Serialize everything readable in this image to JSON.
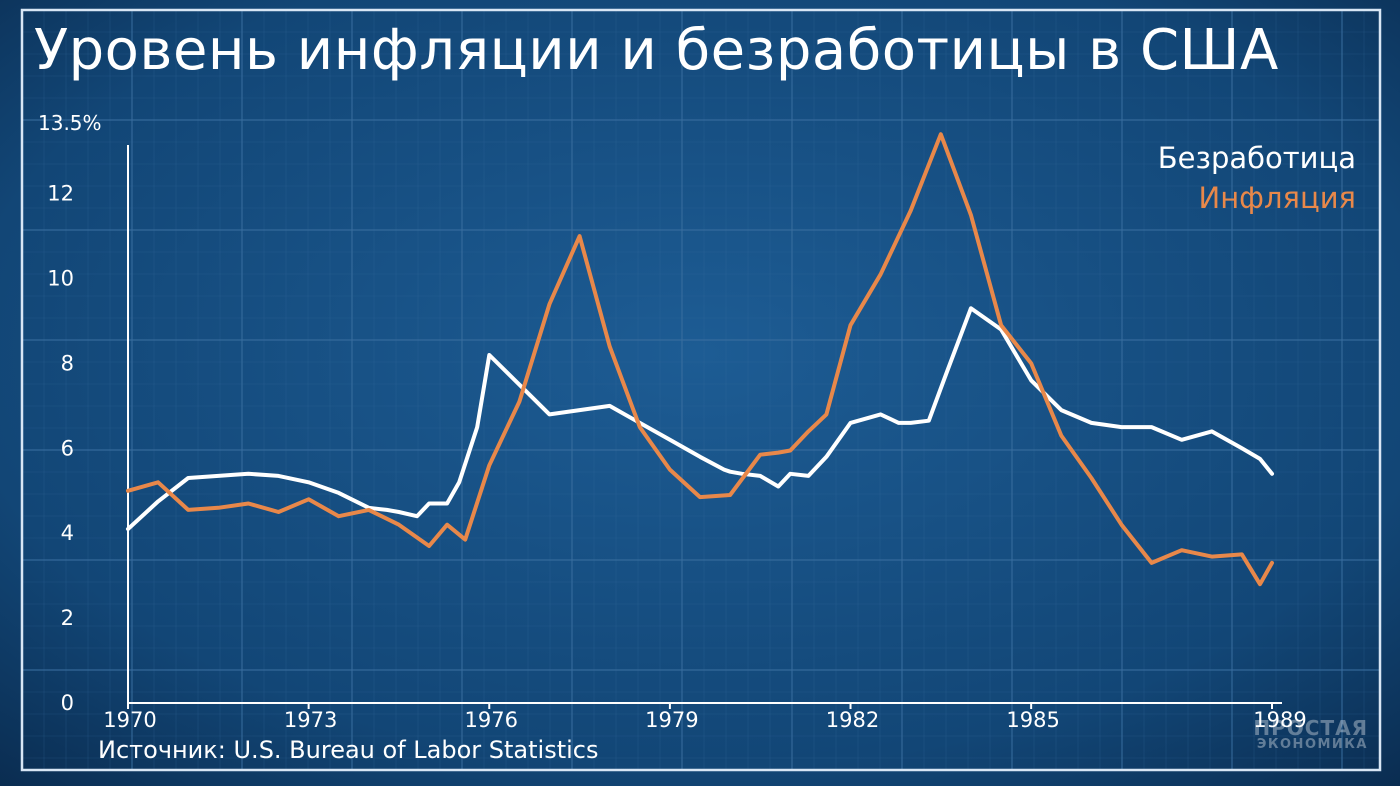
{
  "title": "Уровень инфляции и безработицы в США",
  "source": "Источник: U.S. Bureau of Labor Statistics",
  "logo": {
    "line1": "ПРОСТАЯ",
    "line2": "ЭКОНОМИКА"
  },
  "colors": {
    "background": "#0f3a66",
    "grid": "#3a6fa0",
    "unemployment": "#ffffff",
    "inflation": "#e8884a",
    "axis": "#ffffff"
  },
  "chart_data": {
    "type": "line",
    "xlabel": "",
    "ylabel": "",
    "xlim": [
      1970,
      1989
    ],
    "ylim": [
      0,
      13.5
    ],
    "x_ticks": [
      1970,
      1973,
      1976,
      1979,
      1982,
      1985,
      1989
    ],
    "y_ticks": [
      {
        "value": 0,
        "label": "0"
      },
      {
        "value": 2,
        "label": "2"
      },
      {
        "value": 4,
        "label": "4"
      },
      {
        "value": 6,
        "label": "6"
      },
      {
        "value": 8,
        "label": "8"
      },
      {
        "value": 10,
        "label": "10"
      },
      {
        "value": 12,
        "label": "12"
      },
      {
        "value": 13.5,
        "label": "13.5%"
      }
    ],
    "grid": true,
    "legend_position": "top-right",
    "series": [
      {
        "name": "Безработица",
        "color": "#ffffff",
        "x": [
          1970.0,
          1970.5,
          1971.0,
          1971.5,
          1972.0,
          1972.5,
          1973.0,
          1973.5,
          1974.0,
          1974.3,
          1974.5,
          1974.8,
          1975.0,
          1975.3,
          1975.5,
          1975.8,
          1976.0,
          1976.5,
          1977.0,
          1977.5,
          1978.0,
          1978.5,
          1979.0,
          1979.5,
          1979.9,
          1980.0,
          1980.2,
          1980.5,
          1980.8,
          1981.0,
          1981.3,
          1981.6,
          1982.0,
          1982.5,
          1982.8,
          1983.0,
          1983.3,
          1983.6,
          1984.0,
          1984.5,
          1985.0,
          1985.5,
          1986.0,
          1986.5,
          1987.0,
          1987.5,
          1988.0,
          1988.5,
          1988.8,
          1989.0
        ],
        "y": [
          4.1,
          4.75,
          5.3,
          5.35,
          5.4,
          5.35,
          5.2,
          4.95,
          4.6,
          4.55,
          4.5,
          4.4,
          4.7,
          4.7,
          5.2,
          6.5,
          8.2,
          7.5,
          6.8,
          6.9,
          7.0,
          6.6,
          6.2,
          5.8,
          5.5,
          5.45,
          5.4,
          5.35,
          5.1,
          5.4,
          5.35,
          5.8,
          6.6,
          6.8,
          6.6,
          6.6,
          6.65,
          7.8,
          9.3,
          8.8,
          7.6,
          6.9,
          6.6,
          6.5,
          6.5,
          6.2,
          6.4,
          6.0,
          5.75,
          5.4
        ],
        "values": [
          4.1,
          4.75,
          5.3,
          5.35,
          5.4,
          5.35,
          5.2,
          4.95,
          4.6,
          4.55,
          4.5,
          4.4,
          4.7,
          4.7,
          5.2,
          6.5,
          8.2,
          7.5,
          6.8,
          6.9,
          7.0,
          6.6,
          6.2,
          5.8,
          5.5,
          5.45,
          5.4,
          5.35,
          5.1,
          5.4,
          5.35,
          5.8,
          6.6,
          6.8,
          6.6,
          6.6,
          6.65,
          7.8,
          9.3,
          8.8,
          7.6,
          6.9,
          6.6,
          6.5,
          6.5,
          6.2,
          6.4,
          6.0,
          5.75,
          5.4
        ]
      },
      {
        "name": "Инфляция",
        "color": "#e8884a",
        "x": [
          1970.0,
          1970.5,
          1971.0,
          1971.5,
          1972.0,
          1972.5,
          1973.0,
          1973.5,
          1974.0,
          1974.5,
          1975.0,
          1975.3,
          1975.6,
          1976.0,
          1976.5,
          1977.0,
          1977.5,
          1978.0,
          1978.5,
          1979.0,
          1979.5,
          1980.0,
          1980.5,
          1980.8,
          1981.0,
          1981.3,
          1981.6,
          1982.0,
          1982.5,
          1983.0,
          1983.5,
          1984.0,
          1984.5,
          1985.0,
          1985.5,
          1986.0,
          1986.5,
          1987.0,
          1987.5,
          1988.0,
          1988.5,
          1988.8,
          1989.0
        ],
        "y": [
          5.0,
          5.2,
          4.55,
          4.6,
          4.7,
          4.5,
          4.8,
          4.4,
          4.55,
          4.2,
          3.7,
          4.2,
          3.85,
          5.6,
          7.1,
          9.4,
          11.0,
          8.4,
          6.5,
          5.5,
          4.85,
          4.9,
          5.85,
          5.9,
          5.95,
          6.4,
          6.8,
          8.9,
          10.1,
          11.6,
          13.4,
          11.5,
          8.9,
          8.0,
          6.3,
          5.3,
          4.2,
          3.3,
          3.6,
          3.45,
          3.5,
          2.8,
          3.3
        ],
        "values": [
          5.0,
          5.2,
          4.55,
          4.6,
          4.7,
          4.5,
          4.8,
          4.4,
          4.55,
          4.2,
          3.7,
          4.2,
          3.85,
          5.6,
          7.1,
          9.4,
          11.0,
          8.4,
          6.5,
          5.5,
          4.85,
          4.9,
          5.85,
          5.9,
          5.95,
          6.4,
          6.8,
          8.9,
          10.1,
          11.6,
          13.4,
          11.5,
          8.9,
          8.0,
          6.3,
          5.3,
          4.2,
          3.3,
          3.6,
          3.45,
          3.5,
          2.8,
          3.3
        ]
      }
    ]
  }
}
